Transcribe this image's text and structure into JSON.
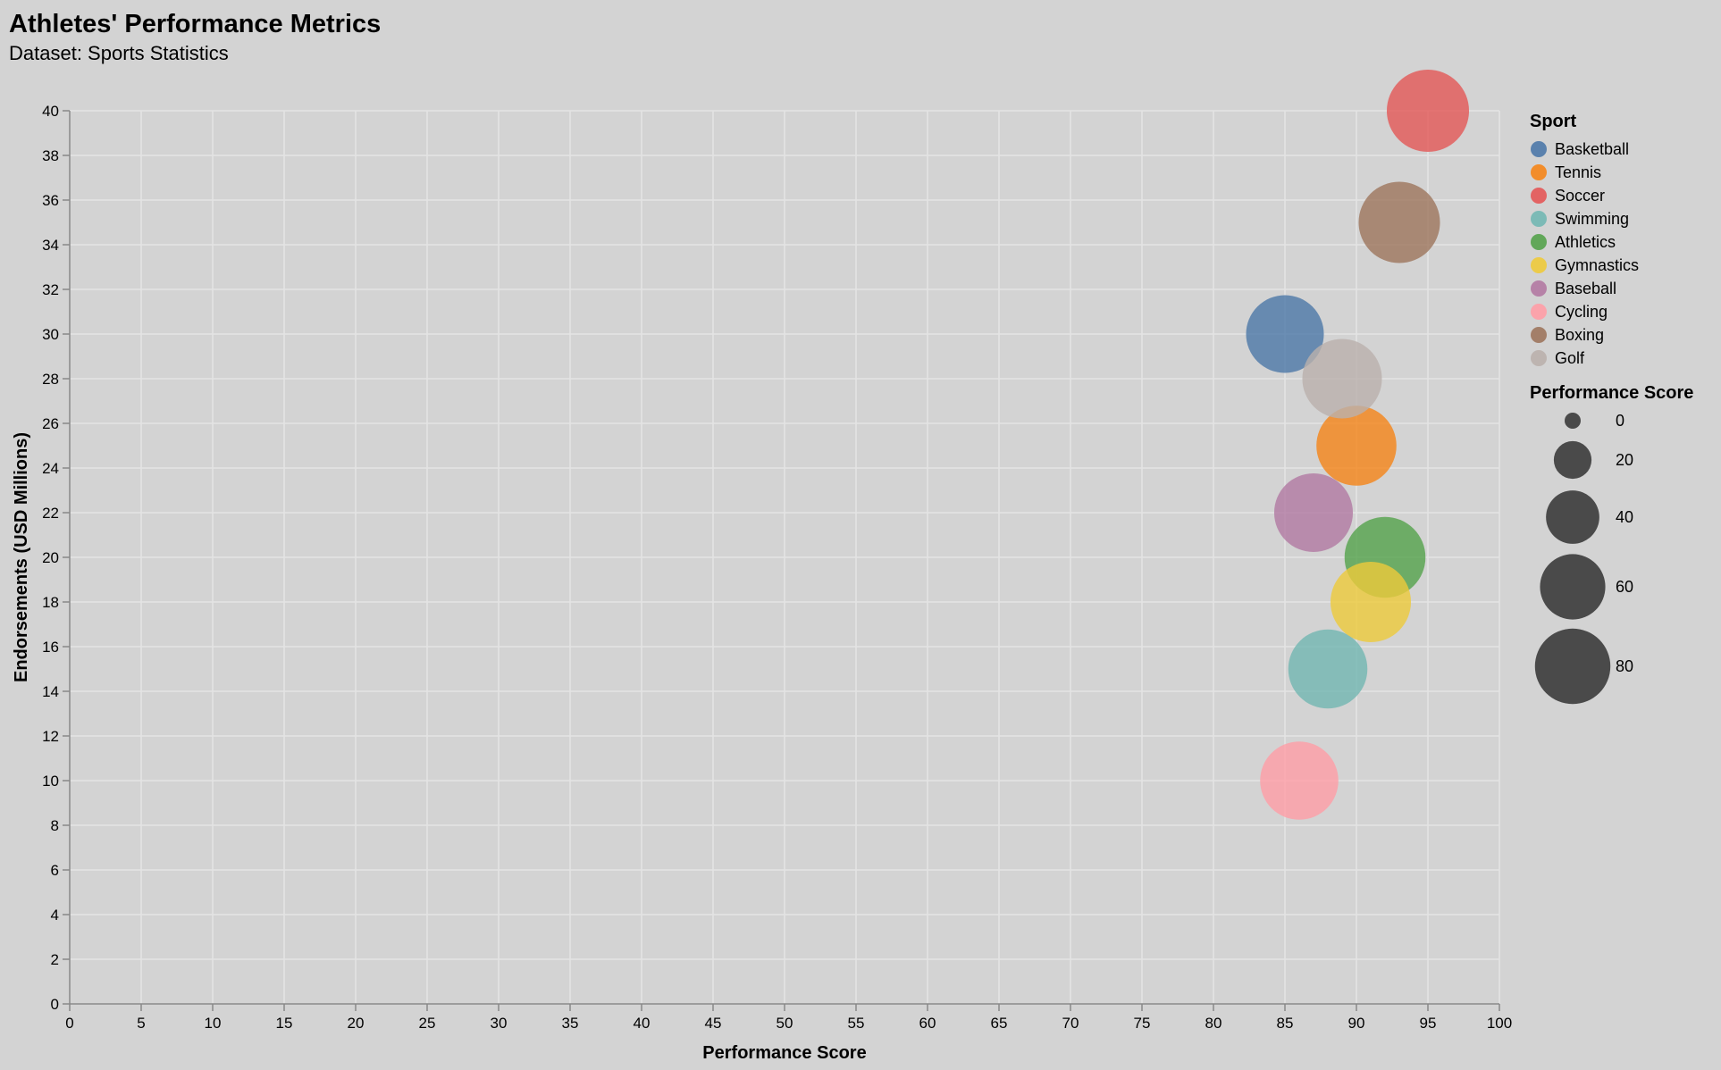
{
  "chart_data": {
    "type": "scatter",
    "title": "Athletes' Performance Metrics",
    "subtitle": "Dataset: Sports Statistics",
    "xlabel": "Performance Score",
    "ylabel": "Endorsements (USD Millions)",
    "xlim": [
      0,
      100
    ],
    "ylim": [
      0,
      40
    ],
    "x_ticks": [
      0,
      5,
      10,
      15,
      20,
      25,
      30,
      35,
      40,
      45,
      50,
      55,
      60,
      65,
      70,
      75,
      80,
      85,
      90,
      95,
      100
    ],
    "y_ticks": [
      0,
      2,
      4,
      6,
      8,
      10,
      12,
      14,
      16,
      18,
      20,
      22,
      24,
      26,
      28,
      30,
      32,
      34,
      36,
      38,
      40
    ],
    "grid": true,
    "legend_placement": "right",
    "color_legend_title": "Sport",
    "size_legend_title": "Performance Score",
    "size_legend_values": [
      0,
      20,
      40,
      60,
      80
    ],
    "size_encoding": "Performance Score",
    "points": [
      {
        "sport": "Basketball",
        "x": 85,
        "y": 30
      },
      {
        "sport": "Tennis",
        "x": 90,
        "y": 25
      },
      {
        "sport": "Soccer",
        "x": 95,
        "y": 40
      },
      {
        "sport": "Swimming",
        "x": 88,
        "y": 15
      },
      {
        "sport": "Athletics",
        "x": 92,
        "y": 20
      },
      {
        "sport": "Gymnastics",
        "x": 91,
        "y": 18
      },
      {
        "sport": "Baseball",
        "x": 87,
        "y": 22
      },
      {
        "sport": "Cycling",
        "x": 86,
        "y": 10
      },
      {
        "sport": "Boxing",
        "x": 93,
        "y": 35
      },
      {
        "sport": "Golf",
        "x": 89,
        "y": 28
      }
    ],
    "categories": [
      "Basketball",
      "Tennis",
      "Soccer",
      "Swimming",
      "Athletics",
      "Gymnastics",
      "Baseball",
      "Cycling",
      "Boxing",
      "Golf"
    ],
    "colors": {
      "Basketball": "#4c78a8",
      "Tennis": "#f58518",
      "Soccer": "#e45756",
      "Swimming": "#72b7b2",
      "Athletics": "#54a24b",
      "Gymnastics": "#eeca3b",
      "Baseball": "#b279a2",
      "Cycling": "#ff9da6",
      "Boxing": "#9d755d",
      "Golf": "#bab0ac"
    },
    "background_color": "#d3d3d3",
    "grid_color": "#e4e4e4"
  }
}
